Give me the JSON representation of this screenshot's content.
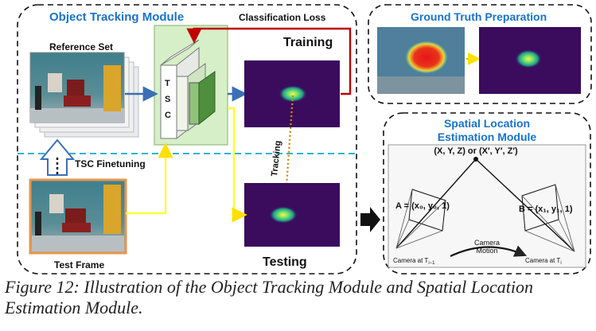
{
  "object_tracking": {
    "title": "Object Tracking Module",
    "reference_set": "Reference Set",
    "classification_loss": "Classification Loss",
    "tsc_letters": [
      "T",
      "S",
      "C"
    ],
    "training": "Training",
    "testing": "Testing",
    "tracking": "Tracking",
    "tsc_finetuning": "TSC Finetuning",
    "test_frame": "Test Frame"
  },
  "ground_truth": {
    "title": "Ground Truth Preparation"
  },
  "spatial": {
    "title_line1": "Spatial Location",
    "title_line2": "Estimation Module",
    "point_label": "(X, Y, Z) or (X′, Y′, Z′)",
    "point_a": "A = (x₀, y₀, 1)",
    "point_b": "B = (x₁, y₁, 1)",
    "camera_motion_line1": "Camera",
    "camera_motion_line2": "Motion",
    "camera_left": "Camera at T",
    "camera_left_sub": "i−1",
    "camera_right": "Camera at T",
    "camera_right_sub": "i"
  },
  "caption": "Figure 12: Illustration of the Object Tracking Module and Spatial Location Estimation Module.",
  "colors": {
    "title_blue": "#1a73c8",
    "heatmap_bg": "#3b0b5e",
    "arrow_blue": "#3b6fb6",
    "arrow_red": "#c00000",
    "arrow_yellow": "#ffff33",
    "tsc_panel": "#d6efc8"
  }
}
